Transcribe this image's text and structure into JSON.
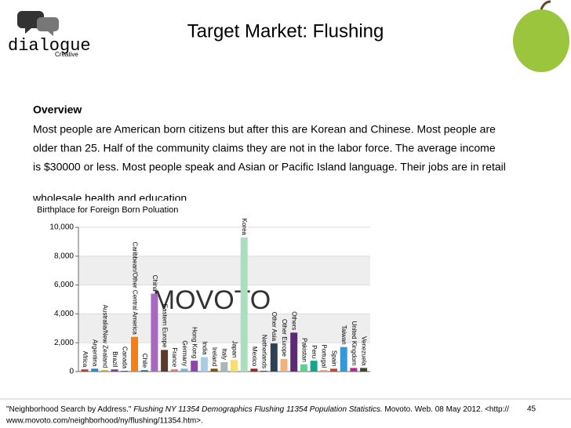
{
  "logo": {
    "name": "dialogue",
    "sub": "Creative"
  },
  "title": "Target Market: Flushing",
  "overview": {
    "heading": "Overview",
    "lines": [
      "Most people are American born citizens but after this are Korean and Chinese. Most people are",
      "older than 25. Half of the community claims they are not in the labor force. The average income",
      "is $30000 or less. Most people speak and Asian or Pacific Island language. Their jobs are in retail",
      "wholesale health and education"
    ]
  },
  "chart_data": {
    "type": "bar",
    "title": "Birthplace for Foreign Born Poluation",
    "watermark": "MOVOTO",
    "categories": [
      "Africa",
      "Argentina",
      "Australia/New Zealand",
      "Brazil",
      "Canada",
      "Caribbean/Other Central America",
      "Chile",
      "China",
      "Eastern Europe",
      "France",
      "Germany",
      "Hong Kong",
      "India",
      "Ireland",
      "Italy",
      "Japan",
      "Korea",
      "Mexico",
      "Netherlands",
      "Other Asia",
      "Other Europe",
      "Others",
      "Pakistan",
      "Peru",
      "Portugal",
      "Spain",
      "Taiwan",
      "United Kingdom",
      "Venezuela"
    ],
    "values": [
      150,
      200,
      100,
      150,
      50,
      2400,
      100,
      5400,
      1500,
      150,
      200,
      750,
      1000,
      200,
      650,
      800,
      9300,
      200,
      50,
      1950,
      870,
      2700,
      500,
      750,
      100,
      200,
      1700,
      250,
      250
    ],
    "colors": [
      "#c0392b",
      "#2e86c1",
      "#d4ac0d",
      "#7d3c98",
      "#a04000",
      "#f57f17",
      "#2874a6",
      "#a569bd",
      "#5b3a29",
      "#ec7063",
      "#7fb3d5",
      "#8e44ad",
      "#a9cce3",
      "#7e5109",
      "#aab7b8",
      "#f7dc6f",
      "#a9dfbf",
      "#922b21",
      "#1a5276",
      "#2e4053",
      "#f0b27a",
      "#5b2c6f",
      "#58d68d",
      "#17a589",
      "#e59866",
      "#cb4335",
      "#3498db",
      "#ab2d8c",
      "#3e4a24"
    ],
    "ylim": [
      0,
      10000
    ],
    "yticks": [
      0,
      {
        "value": 2000,
        "label": "2,000"
      },
      {
        "value": 4000,
        "label": "4,000"
      },
      {
        "value": 6000,
        "label": "6,000"
      },
      {
        "value": 8000,
        "label": "8,000"
      },
      {
        "value": 10000,
        "label": "10,000"
      }
    ],
    "grid": true
  },
  "citation": {
    "part1": "\"Neighborhood Search by Address.\"",
    "italic": "Flushing NY 11354 Demographics Flushing 11354 Population Statistics.",
    "part2": "Movoto. Web. 08 May 2012. <http://",
    "line2": "www.movoto.com/neighborhood/ny/flushing/11354.htm>."
  },
  "page_number": "45"
}
